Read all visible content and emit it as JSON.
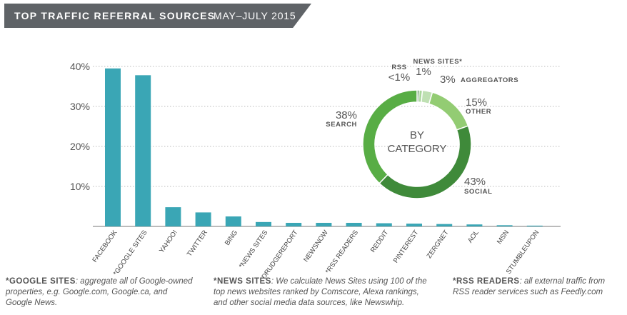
{
  "header": {
    "title": "TOP TRAFFIC REFERRAL SOURCES",
    "period": "MAY–JULY 2015"
  },
  "colors": {
    "bar": "#3aa6b5",
    "banner": "#5f6367",
    "grid": "#bbbbbb"
  },
  "chart_data": [
    {
      "type": "bar",
      "categories": [
        "FACEBOOK",
        "*GOOGLE SITES",
        "YAHOO!",
        "TWITTER",
        "BING",
        "*NEWS SITES",
        "DRUDGEREPORT",
        "NEWSNOW",
        "*RSS READERS",
        "REDDIT",
        "PINTEREST",
        "ZERGNET",
        "AOL",
        "MSN",
        "STUMBLEUPON"
      ],
      "values": [
        39.5,
        37.8,
        4.8,
        3.5,
        2.5,
        1.1,
        0.9,
        0.9,
        0.9,
        0.8,
        0.7,
        0.6,
        0.5,
        0.3,
        0.2
      ],
      "ylim": [
        0,
        40
      ],
      "yticks": [
        {
          "value": 10,
          "label": "10%"
        },
        {
          "value": 20,
          "label": "20%"
        },
        {
          "value": 30,
          "label": "30%"
        },
        {
          "value": 40,
          "label": "40%"
        }
      ],
      "grid": true
    },
    {
      "type": "pie",
      "center_label": [
        "BY",
        "CATEGORY"
      ],
      "slices": [
        {
          "name": "RSS",
          "pct_label": "<1%",
          "value": 0.6,
          "color": "#2f6f2f"
        },
        {
          "name": "NEWS SITES*",
          "pct_label": "1%",
          "value": 1.0,
          "color": "#a9d79b"
        },
        {
          "name": "AGGREGATORS",
          "pct_label": "3%",
          "value": 3.0,
          "color": "#bfe0b3"
        },
        {
          "name": "OTHER",
          "pct_label": "15%",
          "value": 15.0,
          "color": "#93cc73"
        },
        {
          "name": "SOCIAL",
          "pct_label": "43%",
          "value": 43.0,
          "color": "#3f8a3a"
        },
        {
          "name": "SEARCH",
          "pct_label": "38%",
          "value": 38.0,
          "color": "#58ad45"
        }
      ]
    }
  ],
  "footnotes": [
    {
      "term": "*GOOGLE SITES",
      "text": ": aggregate all of Google-owned properties, e.g. Google.com, Google.ca, and Google News."
    },
    {
      "term": "*NEWS SITES",
      "text": ": We calculate News Sites using 100 of the top news websites ranked by Comscore, Alexa rankings, and other social media data sources, like Newswhip."
    },
    {
      "term": "*RSS READERS",
      "text": ": all external traffic from RSS reader services such as Feedly.com"
    }
  ]
}
